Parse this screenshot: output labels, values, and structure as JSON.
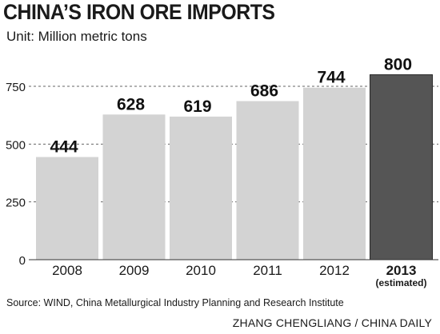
{
  "header": {
    "title": "CHINA’S IRON ORE IMPORTS",
    "unit": "Unit: Million metric tons"
  },
  "chart_data": {
    "type": "bar",
    "categories": [
      "2008",
      "2009",
      "2010",
      "2011",
      "2012",
      "2013"
    ],
    "category_notes": [
      "",
      "",
      "",
      "",
      "",
      "(estimated)"
    ],
    "values": [
      444,
      628,
      619,
      686,
      744,
      800
    ],
    "data_labels": [
      "444",
      "628",
      "619",
      "686",
      "744",
      "800"
    ],
    "highlight_index": 5,
    "yticks": [
      0,
      250,
      500,
      750
    ],
    "ylim": [
      0,
      850
    ],
    "grid": "dashed horizontal",
    "colors": {
      "bar": "#d3d3d3",
      "highlight": "#555555",
      "grid": "#666666"
    }
  },
  "footer": {
    "source": "Source: WIND, China Metallurgical Industry Planning and Research Institute",
    "credit": "ZHANG CHENGLIANG / CHINA DAILY"
  }
}
